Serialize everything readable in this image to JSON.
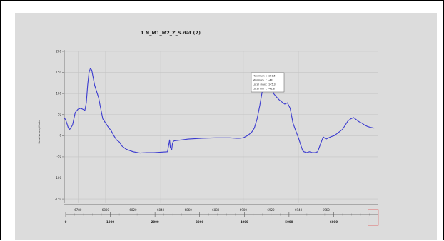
{
  "chart_data": {
    "type": "line",
    "title": "1 N_M1_M2_Z_S.dat (2)",
    "ylabel": "Relative amplitude",
    "xlabel": "",
    "xlim": [
      6770,
      6998
    ],
    "ylim": [
      -160,
      200
    ],
    "x_ticks": [
      6780,
      6800,
      6820,
      6840,
      6860,
      6880,
      6900,
      6920,
      6940,
      6960
    ],
    "y_ticks": [
      200,
      150,
      100,
      50,
      0,
      -50,
      -100,
      -150
    ],
    "grid": true,
    "series": [
      {
        "color": "#3a3acf",
        "x": [
          6770,
          6771,
          6772,
          6773,
          6774,
          6776,
          6778,
          6780,
          6782,
          6784,
          6785,
          6786,
          6787,
          6788,
          6789,
          6790,
          6792,
          6793,
          6794,
          6795,
          6796,
          6798,
          6800,
          6802,
          6804,
          6806,
          6808,
          6810,
          6812,
          6815,
          6820,
          6825,
          6830,
          6835,
          6840,
          6845,
          6846.5,
          6847,
          6848,
          6848.5,
          6849,
          6850,
          6855,
          6860,
          6870,
          6880,
          6890,
          6895,
          6897,
          6900,
          6903,
          6906,
          6908,
          6910,
          6912,
          6913,
          6914,
          6915,
          6916,
          6917,
          6918,
          6920,
          6922,
          6924,
          6926,
          6928,
          6930,
          6932,
          6934,
          6936,
          6938,
          6940,
          6942,
          6943,
          6944,
          6946,
          6948,
          6950,
          6952,
          6954,
          6956,
          6958,
          6960,
          6962,
          6964,
          6966,
          6968,
          6970,
          6972,
          6974,
          6976,
          6978,
          6980,
          6982,
          6984,
          6986,
          6988,
          6990,
          6992,
          6995
        ],
        "y": [
          42,
          38,
          28,
          18,
          15,
          25,
          55,
          63,
          65,
          62,
          60,
          78,
          120,
          150,
          160,
          155,
          120,
          110,
          100,
          90,
          72,
          40,
          30,
          20,
          12,
          0,
          -10,
          -15,
          -25,
          -32,
          -38,
          -41,
          -40,
          -40,
          -39,
          -38,
          -10,
          -28,
          -34,
          -20,
          -14,
          -12,
          -10,
          -8,
          -6,
          -5,
          -5,
          -6,
          -6,
          -5,
          0,
          8,
          18,
          40,
          72,
          92,
          110,
          130,
          140,
          145,
          140,
          120,
          100,
          92,
          85,
          80,
          75,
          78,
          65,
          30,
          12,
          -5,
          -25,
          -35,
          -38,
          -40,
          -38,
          -40,
          -40,
          -38,
          -20,
          -3,
          -8,
          -5,
          -2,
          0,
          5,
          10,
          15,
          25,
          35,
          40,
          43,
          38,
          33,
          30,
          25,
          22,
          20,
          18
        ]
      }
    ],
    "info_box": {
      "rows": [
        {
          "label": "Maximum",
          "value": "151,5"
        },
        {
          "label": "Minimum",
          "value": "-48"
        },
        {
          "label": "Local_max",
          "value": "145,3"
        },
        {
          "label": "Local min",
          "value": "-41,8"
        }
      ]
    },
    "scrollbar": {
      "ticks": [
        0,
        1000,
        2000,
        3000,
        4000,
        5000,
        6000
      ],
      "max": 7000,
      "window_start": 6770,
      "window_end": 6998
    }
  }
}
